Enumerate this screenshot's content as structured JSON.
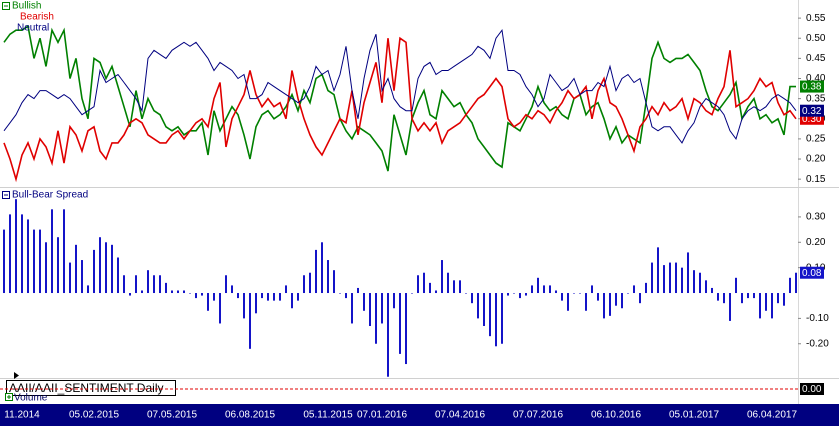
{
  "chart_data": [
    {
      "type": "line",
      "categories": [
        null,
        null,
        null,
        "11.2014",
        null,
        null,
        null,
        null,
        null,
        null,
        null,
        null,
        null,
        null,
        null,
        "05.02.2015",
        null,
        null,
        null,
        null,
        null,
        null,
        null,
        null,
        null,
        null,
        null,
        null,
        "07.05.2015",
        null,
        null,
        null,
        null,
        null,
        null,
        null,
        null,
        null,
        null,
        null,
        null,
        "06.08.2015",
        null,
        null,
        null,
        null,
        null,
        null,
        null,
        null,
        null,
        null,
        null,
        null,
        "05.11.2015",
        null,
        null,
        null,
        null,
        null,
        null,
        null,
        null,
        "07.01.2016",
        null,
        null,
        null,
        null,
        null,
        null,
        null,
        null,
        null,
        null,
        null,
        null,
        "07.04.2016",
        null,
        null,
        null,
        null,
        null,
        null,
        null,
        null,
        null,
        null,
        null,
        null,
        "07.07.2016",
        null,
        null,
        null,
        null,
        null,
        null,
        null,
        null,
        null,
        null,
        null,
        null,
        "06.10.2016",
        null,
        null,
        null,
        null,
        null,
        null,
        null,
        null,
        null,
        null,
        null,
        null,
        "05.01.2017",
        null,
        null,
        null,
        null,
        null,
        null,
        null,
        null,
        null,
        null,
        null,
        null,
        "06.04.2017",
        null,
        null,
        null,
        null
      ],
      "ylim": [
        0.133,
        0.595
      ],
      "yticks": [
        {
          "value": 0.55,
          "label": "0.55"
        },
        {
          "value": 0.5,
          "label": "0.50"
        },
        {
          "value": 0.45,
          "label": "0.45"
        },
        {
          "value": 0.4,
          "label": "0.40"
        },
        {
          "value": 0.35,
          "label": "0.35"
        },
        {
          "value": 0.3,
          "label": "0.30"
        },
        {
          "value": 0.25,
          "label": "0.25"
        },
        {
          "value": 0.2,
          "label": "0.20"
        },
        {
          "value": 0.15,
          "label": "0.15"
        }
      ],
      "series": [
        {
          "name": "Bullish",
          "color": "#008000",
          "last_label": "0.38",
          "values": [
            0.49,
            0.51,
            0.52,
            0.52,
            0.53,
            0.45,
            0.5,
            0.43,
            0.52,
            0.49,
            0.52,
            0.4,
            0.45,
            0.35,
            0.3,
            0.45,
            0.44,
            0.4,
            0.43,
            0.38,
            0.33,
            0.28,
            0.37,
            0.3,
            0.35,
            0.32,
            0.31,
            0.28,
            0.27,
            0.28,
            0.26,
            0.27,
            0.27,
            0.29,
            0.21,
            0.32,
            0.27,
            0.3,
            0.33,
            0.31,
            0.26,
            0.2,
            0.28,
            0.31,
            0.32,
            0.3,
            0.31,
            0.33,
            0.36,
            0.32,
            0.37,
            0.34,
            0.4,
            0.41,
            0.37,
            0.36,
            0.3,
            0.27,
            0.25,
            0.28,
            0.27,
            0.26,
            0.24,
            0.22,
            0.17,
            0.31,
            0.26,
            0.21,
            0.3,
            0.34,
            0.37,
            0.31,
            0.3,
            0.37,
            0.35,
            0.33,
            0.34,
            0.31,
            0.29,
            0.25,
            0.23,
            0.21,
            0.19,
            0.18,
            0.29,
            0.28,
            0.27,
            0.3,
            0.33,
            0.38,
            0.34,
            0.32,
            0.33,
            0.31,
            0.3,
            0.35,
            0.36,
            0.31,
            0.33,
            0.34,
            0.3,
            0.25,
            0.28,
            0.24,
            0.26,
            0.25,
            0.24,
            0.34,
            0.45,
            0.49,
            0.45,
            0.44,
            0.45,
            0.45,
            0.46,
            0.44,
            0.42,
            0.37,
            0.33,
            0.32,
            0.34,
            0.36,
            0.39,
            0.3,
            0.33,
            0.35,
            0.3,
            0.31,
            0.29,
            0.3,
            0.26,
            0.38,
            0.38
          ]
        },
        {
          "name": "Bearish",
          "color": "#e00000",
          "last_label": "0.30",
          "values": [
            0.24,
            0.2,
            0.15,
            0.21,
            0.24,
            0.2,
            0.25,
            0.23,
            0.19,
            0.27,
            0.19,
            0.28,
            0.26,
            0.22,
            0.27,
            0.28,
            0.22,
            0.2,
            0.24,
            0.24,
            0.26,
            0.29,
            0.3,
            0.29,
            0.26,
            0.25,
            0.24,
            0.24,
            0.26,
            0.27,
            0.25,
            0.27,
            0.29,
            0.3,
            0.28,
            0.35,
            0.39,
            0.23,
            0.3,
            0.33,
            0.36,
            0.42,
            0.36,
            0.33,
            0.35,
            0.33,
            0.34,
            0.3,
            0.42,
            0.35,
            0.3,
            0.26,
            0.23,
            0.21,
            0.24,
            0.27,
            0.3,
            0.29,
            0.37,
            0.26,
            0.34,
            0.39,
            0.44,
            0.34,
            0.5,
            0.37,
            0.5,
            0.49,
            0.3,
            0.27,
            0.29,
            0.27,
            0.29,
            0.24,
            0.27,
            0.28,
            0.29,
            0.31,
            0.33,
            0.35,
            0.36,
            0.38,
            0.4,
            0.38,
            0.3,
            0.28,
            0.29,
            0.31,
            0.3,
            0.32,
            0.31,
            0.29,
            0.32,
            0.34,
            0.37,
            0.35,
            0.36,
            0.38,
            0.3,
            0.37,
            0.4,
            0.34,
            0.33,
            0.3,
            0.26,
            0.22,
            0.28,
            0.3,
            0.33,
            0.31,
            0.34,
            0.32,
            0.33,
            0.35,
            0.3,
            0.35,
            0.34,
            0.32,
            0.31,
            0.35,
            0.38,
            0.47,
            0.33,
            0.34,
            0.35,
            0.37,
            0.4,
            0.38,
            0.39,
            0.34,
            0.31,
            0.32,
            0.3
          ]
        },
        {
          "name": "Neutral",
          "color": "#000080",
          "last_label": "0.32",
          "values": [
            0.27,
            0.29,
            0.31,
            0.34,
            0.36,
            0.35,
            0.37,
            0.37,
            0.36,
            0.35,
            0.36,
            0.35,
            0.33,
            0.31,
            0.32,
            0.33,
            0.42,
            0.39,
            0.4,
            0.41,
            0.39,
            0.37,
            0.35,
            0.32,
            0.45,
            0.47,
            0.46,
            0.45,
            0.47,
            0.48,
            0.49,
            0.48,
            0.49,
            0.47,
            0.45,
            0.42,
            0.44,
            0.43,
            0.42,
            0.4,
            0.41,
            0.35,
            0.35,
            0.36,
            0.39,
            0.38,
            0.37,
            0.36,
            0.35,
            0.34,
            0.35,
            0.38,
            0.43,
            0.41,
            0.42,
            0.37,
            0.41,
            0.48,
            0.37,
            0.3,
            0.4,
            0.47,
            0.51,
            0.37,
            0.4,
            0.35,
            0.33,
            0.32,
            0.32,
            0.4,
            0.43,
            0.44,
            0.41,
            0.42,
            0.42,
            0.43,
            0.44,
            0.45,
            0.46,
            0.48,
            0.47,
            0.45,
            0.5,
            0.52,
            0.42,
            0.42,
            0.41,
            0.38,
            0.36,
            0.33,
            0.35,
            0.41,
            0.39,
            0.37,
            0.38,
            0.4,
            0.36,
            0.37,
            0.37,
            0.39,
            0.38,
            0.43,
            0.37,
            0.4,
            0.41,
            0.39,
            0.4,
            0.34,
            0.28,
            0.27,
            0.28,
            0.28,
            0.26,
            0.24,
            0.27,
            0.29,
            0.33,
            0.35,
            0.34,
            0.33,
            0.31,
            0.27,
            0.25,
            0.3,
            0.32,
            0.33,
            0.32,
            0.33,
            0.35,
            0.36,
            0.35,
            0.34,
            0.32
          ]
        }
      ]
    },
    {
      "type": "bar",
      "ylim": [
        -0.335,
        0.414
      ],
      "yticks": [
        {
          "value": 0.3,
          "label": "0.30"
        },
        {
          "value": 0.2,
          "label": "0.20"
        },
        {
          "value": 0.1,
          "label": "0.10"
        },
        {
          "value": -0.1,
          "label": "-0.10"
        },
        {
          "value": -0.2,
          "label": "-0.20"
        }
      ],
      "series": [
        {
          "name": "Bull-Bear Spread",
          "color": "#1414c8",
          "last_label": "0.08",
          "values": [
            0.25,
            0.31,
            0.37,
            0.31,
            0.29,
            0.25,
            0.25,
            0.2,
            0.33,
            0.22,
            0.33,
            0.12,
            0.19,
            0.13,
            0.03,
            0.17,
            0.22,
            0.2,
            0.19,
            0.14,
            0.07,
            -0.01,
            0.07,
            0.01,
            0.09,
            0.07,
            0.07,
            0.04,
            0.01,
            0.01,
            0.01,
            0,
            -0.02,
            -0.01,
            -0.07,
            -0.03,
            -0.12,
            0.07,
            0.03,
            -0.02,
            -0.1,
            -0.22,
            -0.08,
            -0.02,
            -0.03,
            -0.03,
            -0.03,
            0.03,
            -0.06,
            -0.03,
            0.07,
            0.08,
            0.17,
            0.2,
            0.13,
            0.09,
            0,
            -0.02,
            -0.12,
            0.02,
            -0.07,
            -0.13,
            -0.2,
            -0.12,
            -0.33,
            -0.06,
            -0.24,
            -0.28,
            0,
            0.07,
            0.08,
            0.04,
            0.01,
            0.13,
            0.08,
            0.05,
            0.05,
            0,
            -0.04,
            -0.1,
            -0.13,
            -0.17,
            -0.21,
            -0.2,
            -0.01,
            0,
            -0.02,
            -0.01,
            0.03,
            0.06,
            0.03,
            0.03,
            0.01,
            -0.03,
            -0.07,
            0,
            0,
            -0.07,
            0.03,
            -0.03,
            -0.1,
            -0.09,
            -0.05,
            -0.06,
            0,
            0.03,
            -0.04,
            0.04,
            0.12,
            0.18,
            0.11,
            0.12,
            0.12,
            0.1,
            0.16,
            0.09,
            0.08,
            0.05,
            0.02,
            -0.03,
            -0.04,
            -0.11,
            0.06,
            -0.04,
            -0.02,
            -0.02,
            -0.1,
            -0.07,
            -0.1,
            -0.04,
            -0.05,
            0.06,
            0.08
          ]
        }
      ]
    },
    {
      "type": "volume",
      "name": "Volume",
      "legend": "AAII/AAII_SENTIMENT Daily",
      "level": {
        "value": 0,
        "label": "0.00"
      }
    }
  ]
}
